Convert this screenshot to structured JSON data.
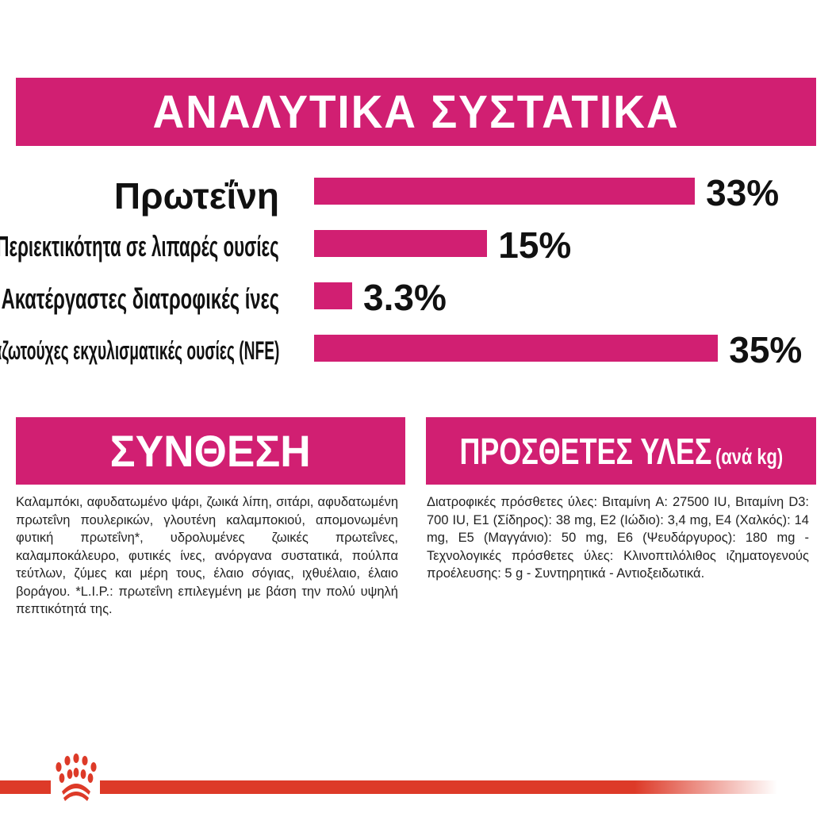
{
  "header": {
    "title": "ΑΝΑΛΥΤΙΚΑ ΣΥΣΤΑΤΙΚΑ"
  },
  "chart_data": {
    "type": "bar",
    "orientation": "horizontal",
    "categories": [
      "Πρωτεΐνη",
      "Περιεκτικότητα σε λιπαρές ουσίες",
      "Ακατέργαστες διατροφικές ίνες",
      "Μη αζωτούχες εκχυλισματικές ουσίες (NFE)"
    ],
    "values": [
      33,
      15,
      3.3,
      35
    ],
    "data_labels": [
      "33%",
      "15%",
      "3.3%",
      "35%"
    ],
    "bar_color": "#d11f72",
    "grid": false
  },
  "composition": {
    "title": "ΣΥΝΘΕΣΗ",
    "text": "Καλαμπόκι, αφυδατωμένο ψάρι, ζωικά λίπη, σιτάρι, αφυδατωμένη πρωτεΐνη πουλερικών, γλουτένη καλαμποκιού, απομονωμένη φυτική πρωτεΐνη*, υδρολυμένες ζωικές πρωτεΐνες, καλαμποκάλευρο, φυτικές ίνες, ανόργανα συστατικά, πούλπα τεύτλων, ζύμες και μέρη τους, έλαιο σόγιας, ιχθυέλαιο, έλαιο βοράγου. *L.I.P.: πρωτεΐνη επιλεγμένη με βάση την πολύ υψηλή πεπτικότητά της."
  },
  "additives": {
    "title": "ΠΡΟΣΘΕΤΕΣ ΥΛΕΣ",
    "unit": "(ανά kg)",
    "text": "Διατροφικές πρόσθετες ύλες: Βιταμίνη A: 27500 IU, Βιταμίνη D3: 700 IU, E1 (Σίδηρος): 38 mg, E2 (Ιώδιο): 3,4 mg, E4 (Χαλκός): 14 mg, E5 (Μαγγάνιο): 50 mg, E6 (Ψευδάργυρος): 180 mg - Τεχνολογικές πρόσθετες ύλες: Κλινοπτιλόλιθος ιζηματογενούς προέλευσης: 5 g - Συντηρητικά - Αντιοξειδωτικά."
  },
  "colors": {
    "accent": "#d11f72",
    "brand_red": "#dd3a28"
  },
  "footer": {
    "logo_icon": "royal-canin-crown-icon"
  }
}
